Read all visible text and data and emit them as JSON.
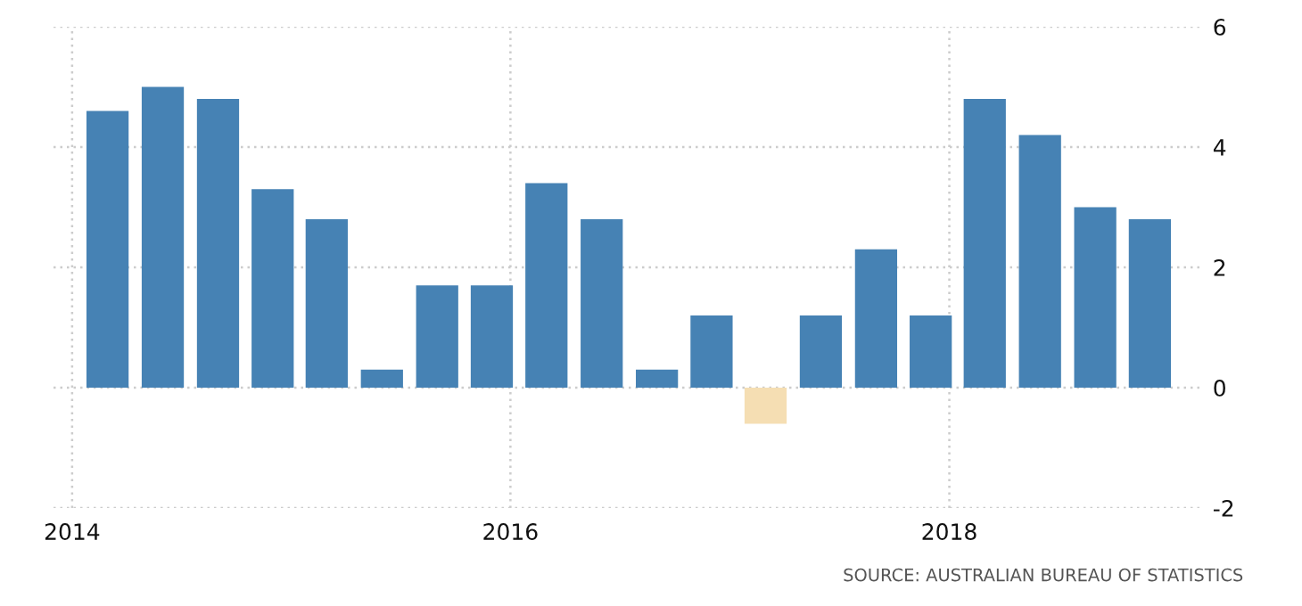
{
  "chart_data": {
    "type": "bar",
    "x": [
      "2014-03",
      "2014-06",
      "2014-09",
      "2014-12",
      "2015-03",
      "2015-06",
      "2015-09",
      "2015-12",
      "2016-03",
      "2016-06",
      "2016-09",
      "2016-12",
      "2017-03",
      "2017-06",
      "2017-09",
      "2017-12",
      "2018-03",
      "2018-06",
      "2018-09",
      "2018-12"
    ],
    "values": [
      4.6,
      5.0,
      4.8,
      3.3,
      2.8,
      0.3,
      1.7,
      1.7,
      3.4,
      2.8,
      0.3,
      1.2,
      -0.6,
      1.2,
      2.3,
      1.2,
      4.8,
      4.2,
      3.0,
      2.8
    ],
    "colors": [
      "#4682b4",
      "#4682b4",
      "#4682b4",
      "#4682b4",
      "#4682b4",
      "#4682b4",
      "#4682b4",
      "#4682b4",
      "#4682b4",
      "#4682b4",
      "#4682b4",
      "#4682b4",
      "#f5deb3",
      "#4682b4",
      "#4682b4",
      "#4682b4",
      "#4682b4",
      "#4682b4",
      "#4682b4",
      "#4682b4"
    ],
    "xlim": [
      "2013-12",
      "2019-03"
    ],
    "xticks": [
      {
        "value": "2014",
        "label": "2014"
      },
      {
        "value": "2016",
        "label": "2016"
      },
      {
        "value": "2018",
        "label": "2018"
      }
    ],
    "ylim": [
      -2,
      6
    ],
    "yticks": [
      -2,
      0,
      2,
      4,
      6
    ],
    "grid": true,
    "annotations": [
      "SOURCE: AUSTRALIAN BUREAU OF STATISTICS"
    ]
  }
}
